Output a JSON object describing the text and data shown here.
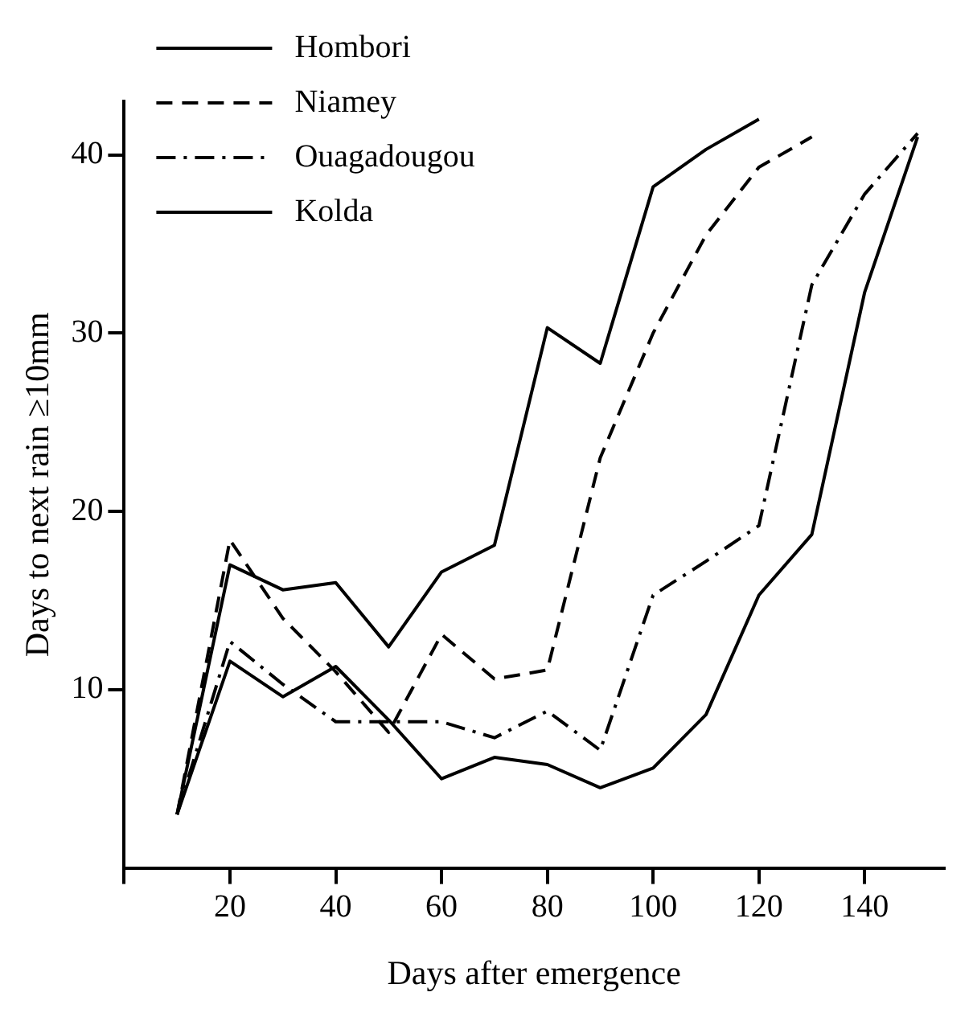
{
  "chart_data": {
    "type": "line",
    "xlabel": "Days after emergence",
    "ylabel": "Days to next rain ≥10mm",
    "xlim": [
      0,
      155
    ],
    "xticks": [
      {
        "value": 0,
        "label": null
      },
      20,
      40,
      60,
      80,
      100,
      120,
      140
    ],
    "ylim": [
      0,
      43
    ],
    "yticks": [
      10,
      20,
      30,
      40
    ],
    "grid": false,
    "legend": "top left",
    "marker": "none",
    "series": [
      {
        "name": "Hombori",
        "color": "#000000",
        "line_style": "solid",
        "x": [
          10,
          20,
          30,
          40,
          50,
          60,
          70,
          80,
          90,
          100,
          110,
          120
        ],
        "values": [
          3,
          17,
          15.6,
          16,
          12.4,
          16.6,
          18.1,
          30.3,
          28.3,
          38.2,
          40.3,
          42
        ]
      },
      {
        "name": "Niamey",
        "color": "#000000",
        "line_style": "dashed",
        "x": [
          10,
          20,
          30,
          40,
          50,
          60,
          70,
          80,
          90,
          100,
          110,
          120,
          130
        ],
        "values": [
          3,
          18.4,
          14,
          11,
          7.6,
          13.1,
          10.6,
          11.1,
          23,
          30,
          35.5,
          39.3,
          41
        ]
      },
      {
        "name": "Ouagadougou",
        "color": "#000000",
        "line_style": "dashdot",
        "x": [
          10,
          20,
          30,
          40,
          50,
          60,
          70,
          80,
          90,
          100,
          110,
          120,
          130,
          140,
          150
        ],
        "values": [
          3,
          12.7,
          10.3,
          8.2,
          8.2,
          8.2,
          7.3,
          8.8,
          6.6,
          15.3,
          17.2,
          19.2,
          32.7,
          37.8,
          41.2
        ]
      },
      {
        "name": "Kolda",
        "color": "#000000",
        "line_style": "solid",
        "x": [
          10,
          20,
          30,
          40,
          50,
          60,
          70,
          80,
          90,
          100,
          110,
          120,
          130,
          140,
          150
        ],
        "values": [
          3,
          11.6,
          9.6,
          11.3,
          8.3,
          5,
          6.2,
          5.8,
          4.5,
          5.6,
          8.6,
          15.3,
          18.7,
          32.3,
          41
        ]
      }
    ]
  }
}
